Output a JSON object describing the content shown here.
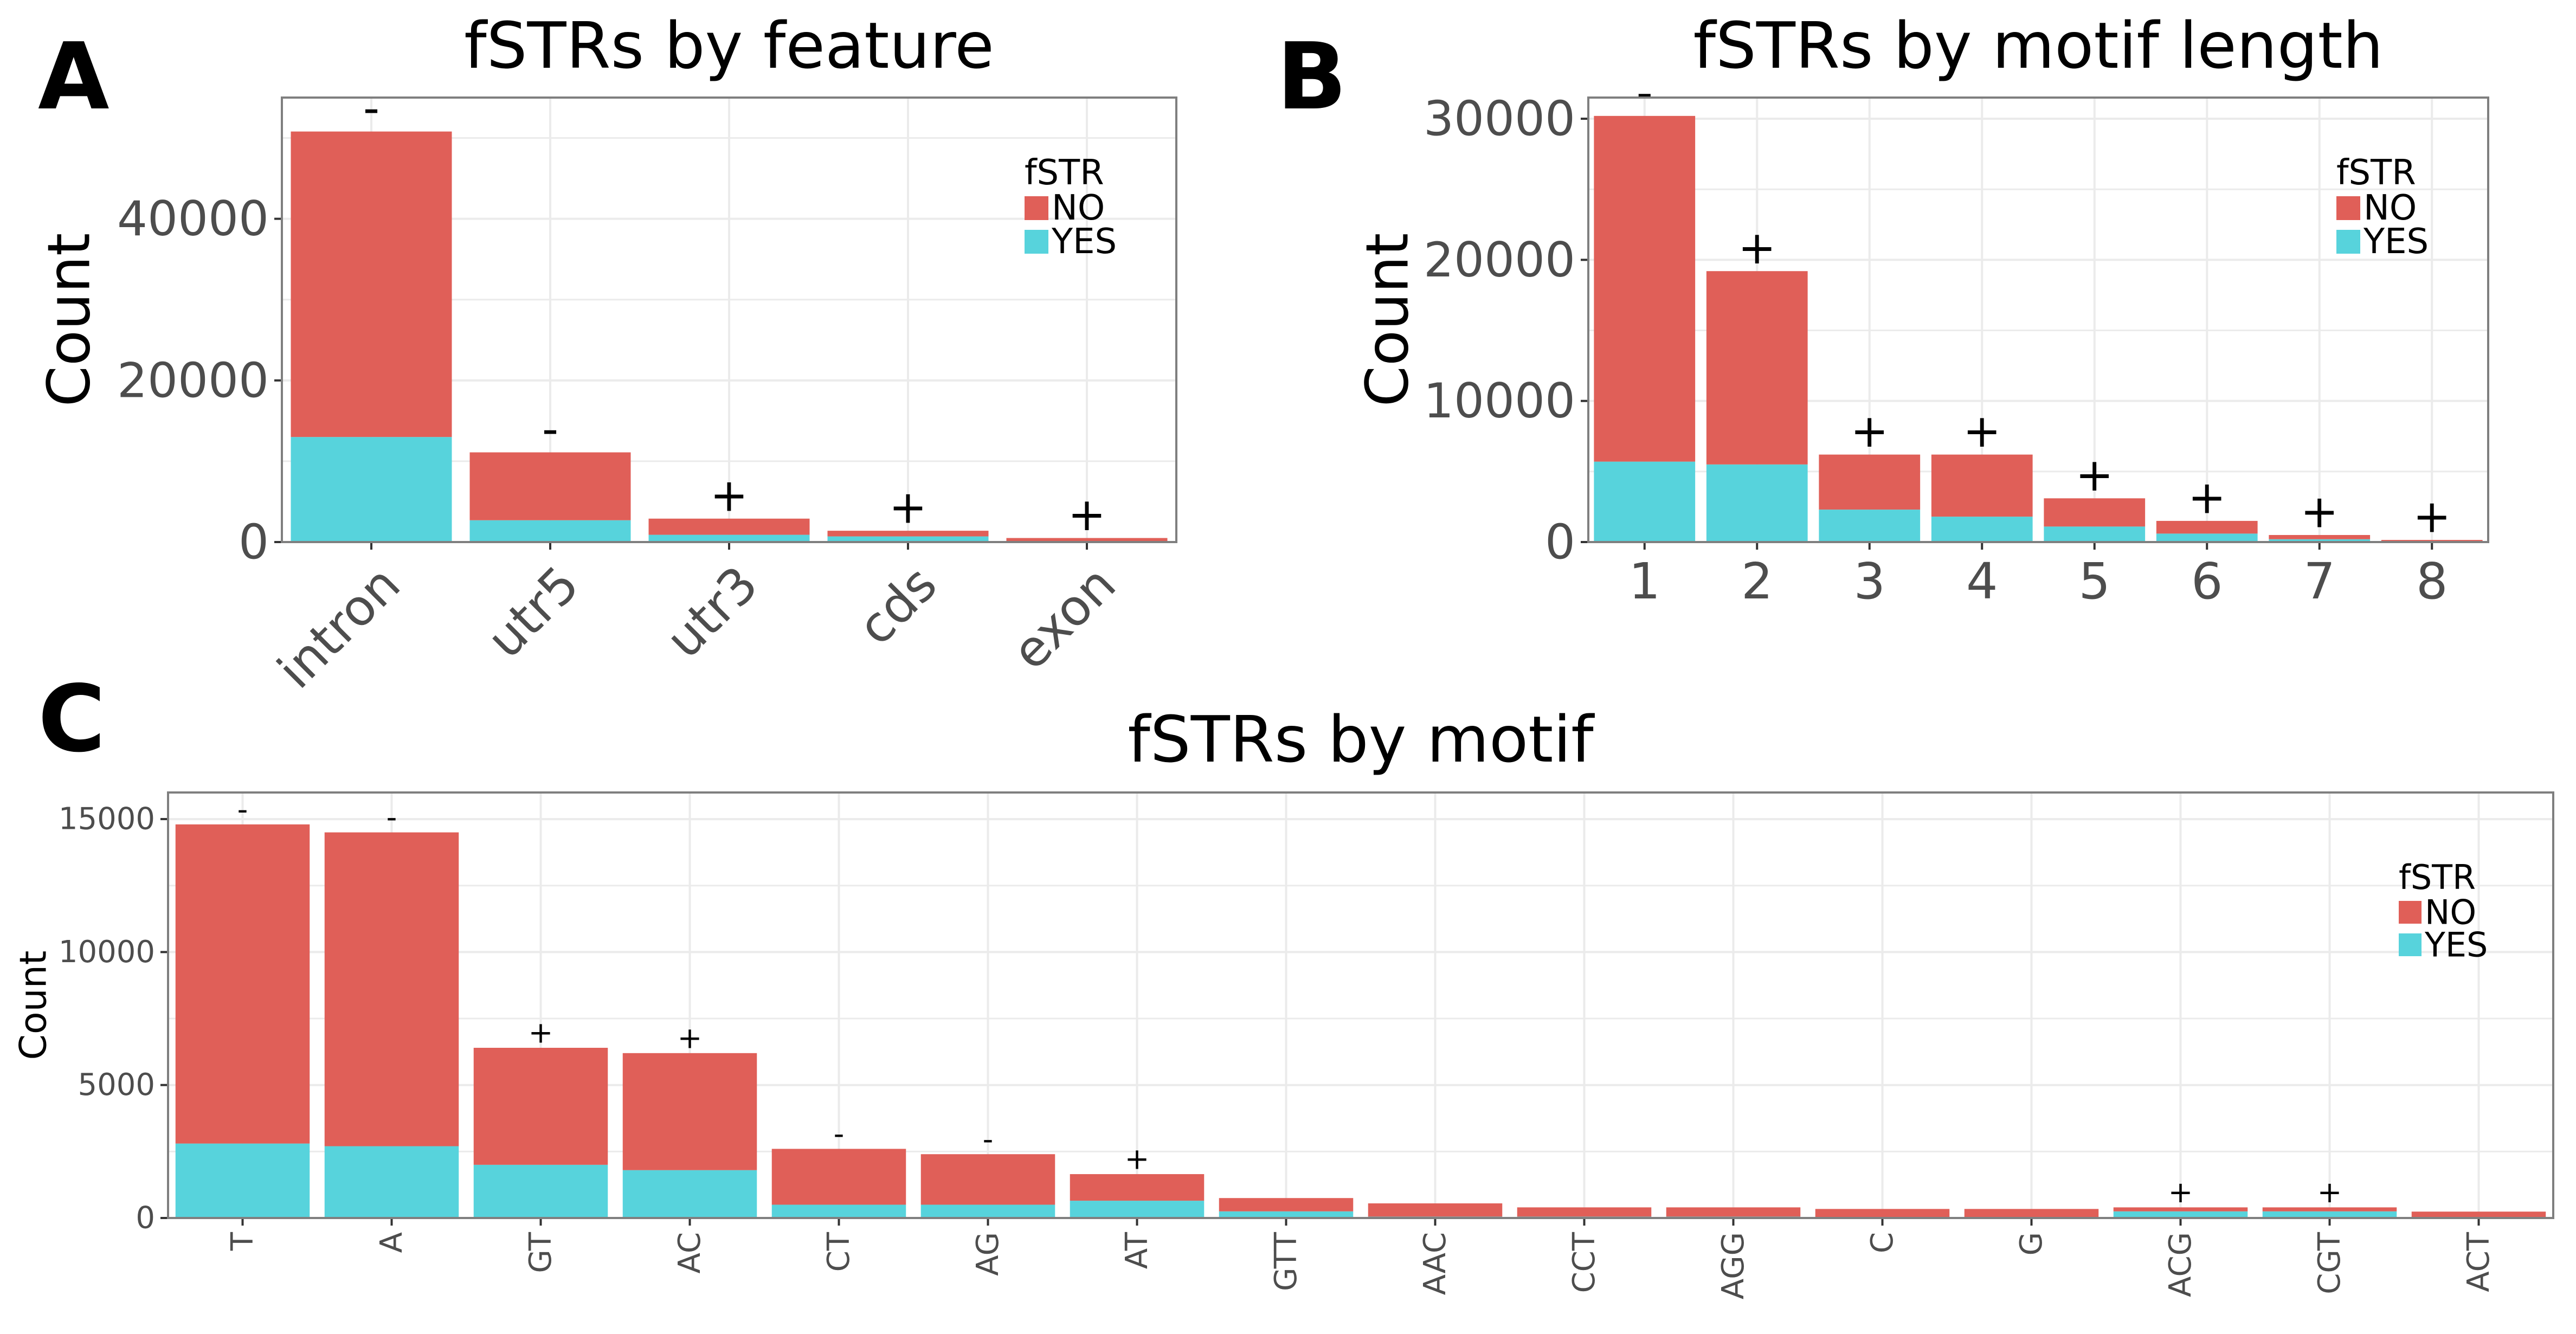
{
  "figure": {
    "colors": {
      "NO": "#E05F58",
      "YES": "#57D3DC",
      "grid": "#EBEBEB",
      "frame": "#7F7F7F"
    }
  },
  "chart_data": [
    {
      "panel": "A",
      "type": "bar",
      "stacked": true,
      "title": "fSTRs by feature",
      "xlabel": "",
      "ylabel": "Count",
      "ylim": [
        0,
        55000
      ],
      "yticks": [
        0,
        20000,
        40000
      ],
      "grid": true,
      "legend": {
        "title": "fSTR",
        "placement": "top-right",
        "entries": [
          "NO",
          "YES"
        ]
      },
      "categories": [
        "intron",
        "utr5",
        "utr3",
        "cds",
        "exon"
      ],
      "series": [
        {
          "name": "YES",
          "values": [
            13000,
            2700,
            900,
            700,
            100
          ]
        },
        {
          "name": "NO",
          "values": [
            37800,
            8400,
            2000,
            700,
            400
          ]
        }
      ],
      "annotations": [
        "-",
        "-",
        "+",
        "+",
        "+"
      ]
    },
    {
      "panel": "B",
      "type": "bar",
      "stacked": true,
      "title": "fSTRs by motif length",
      "xlabel": "",
      "ylabel": "Count",
      "ylim": [
        0,
        31500
      ],
      "yticks": [
        0,
        10000,
        20000,
        30000
      ],
      "grid": true,
      "legend": {
        "title": "fSTR",
        "placement": "top-right",
        "entries": [
          "NO",
          "YES"
        ]
      },
      "categories": [
        "1",
        "2",
        "3",
        "4",
        "5",
        "6",
        "7",
        "8"
      ],
      "series": [
        {
          "name": "YES",
          "values": [
            5700,
            5500,
            2300,
            1800,
            1100,
            600,
            200,
            50
          ]
        },
        {
          "name": "NO",
          "values": [
            24500,
            13700,
            3900,
            4400,
            2000,
            900,
            300,
            100
          ]
        }
      ],
      "annotations": [
        "-",
        "+",
        "+",
        "+",
        "+",
        "+",
        "+",
        "+"
      ]
    },
    {
      "panel": "C",
      "type": "bar",
      "stacked": true,
      "title": "fSTRs by motif",
      "xlabel": "",
      "ylabel": "Count",
      "ylim": [
        0,
        16000
      ],
      "yticks": [
        0,
        5000,
        10000,
        15000
      ],
      "grid": true,
      "legend": {
        "title": "fSTR",
        "placement": "top-right",
        "entries": [
          "NO",
          "YES"
        ]
      },
      "categories": [
        "T",
        "A",
        "GT",
        "AC",
        "CT",
        "AG",
        "AT",
        "GTT",
        "AAC",
        "CCT",
        "AGG",
        "C",
        "G",
        "ACG",
        "CGT",
        "ACT"
      ],
      "series": [
        {
          "name": "YES",
          "values": [
            2800,
            2700,
            2000,
            1800,
            500,
            500,
            650,
            250,
            50,
            50,
            50,
            40,
            40,
            250,
            250,
            40
          ]
        },
        {
          "name": "NO",
          "values": [
            12000,
            11800,
            4400,
            4400,
            2100,
            1900,
            1000,
            500,
            500,
            350,
            350,
            300,
            300,
            150,
            150,
            200
          ]
        }
      ],
      "annotations": [
        "-",
        "-",
        "+",
        "+",
        "-",
        "-",
        "+",
        "",
        "",
        "",
        "",
        "",
        "",
        "+",
        "+",
        ""
      ]
    }
  ]
}
